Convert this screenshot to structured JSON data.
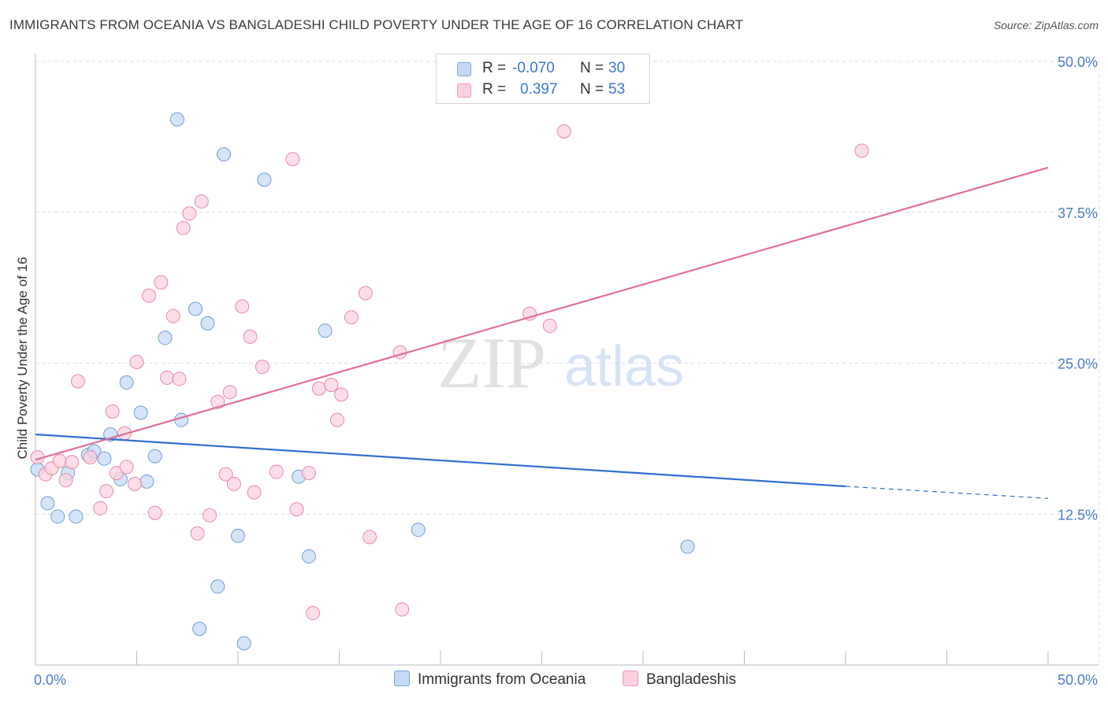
{
  "header": {
    "title": "IMMIGRANTS FROM OCEANIA VS BANGLADESHI CHILD POVERTY UNDER THE AGE OF 16 CORRELATION CHART",
    "source": "Source: ZipAtlas.com"
  },
  "watermark": {
    "zip": "ZIP",
    "atlas": "atlas"
  },
  "legend": {
    "rows": [
      {
        "r_label": "R =",
        "r_value": "-0.070",
        "n_label": "N =",
        "n_value": "30",
        "color": "#a9c7ef"
      },
      {
        "r_label": "R =",
        "r_value": "0.397",
        "n_label": "N =",
        "n_value": "53",
        "color": "#f6b5c9"
      }
    ]
  },
  "bottom_legend": {
    "series1": "Immigrants from Oceania",
    "series2": "Bangladeshis"
  },
  "chart_data": {
    "type": "scatter",
    "ylabel": "Child Poverty Under the Age of 16",
    "xlabel": "",
    "xlim": [
      0,
      50
    ],
    "ylim": [
      0,
      50
    ],
    "x_tick_labels": [
      "0.0%",
      "50.0%"
    ],
    "y_tick_labels": [
      "12.5%",
      "25.0%",
      "37.5%",
      "50.0%"
    ],
    "y_ticks": [
      12.5,
      25.0,
      37.5,
      50.0
    ],
    "grid": true,
    "legend_position": "top-center",
    "series": [
      {
        "name": "Immigrants from Oceania",
        "color": "#a9c7ef",
        "stroke": "#6f9fd8",
        "line_color": "#2f6fcf",
        "trend": {
          "x": [
            0,
            40
          ],
          "y": [
            19.1,
            14.8
          ],
          "dashed_to": [
            50,
            13.8
          ]
        },
        "points": [
          [
            0.1,
            16.2
          ],
          [
            0.6,
            13.4
          ],
          [
            1.1,
            12.3
          ],
          [
            1.6,
            15.9
          ],
          [
            2.0,
            12.3
          ],
          [
            2.6,
            17.4
          ],
          [
            2.9,
            17.7
          ],
          [
            3.4,
            17.1
          ],
          [
            3.7,
            19.1
          ],
          [
            4.2,
            15.4
          ],
          [
            4.5,
            23.4
          ],
          [
            5.2,
            20.9
          ],
          [
            5.5,
            15.2
          ],
          [
            5.9,
            17.3
          ],
          [
            6.4,
            27.1
          ],
          [
            7.0,
            45.2
          ],
          [
            7.2,
            20.3
          ],
          [
            7.9,
            29.5
          ],
          [
            8.1,
            3.0
          ],
          [
            8.5,
            28.3
          ],
          [
            9.0,
            6.5
          ],
          [
            9.3,
            42.3
          ],
          [
            10.0,
            10.7
          ],
          [
            10.3,
            1.8
          ],
          [
            11.3,
            40.2
          ],
          [
            13.0,
            15.6
          ],
          [
            13.5,
            9.0
          ],
          [
            14.3,
            27.7
          ],
          [
            18.9,
            11.2
          ],
          [
            32.2,
            9.8
          ]
        ]
      },
      {
        "name": "Bangladeshis",
        "color": "#f6b5c9",
        "stroke": "#e88aa6",
        "line_color": "#e26f97",
        "trend": {
          "x": [
            0,
            50
          ],
          "y": [
            17.0,
            41.2
          ]
        },
        "points": [
          [
            0.1,
            17.2
          ],
          [
            0.5,
            15.8
          ],
          [
            0.8,
            16.3
          ],
          [
            1.2,
            16.9
          ],
          [
            1.5,
            15.3
          ],
          [
            1.8,
            16.8
          ],
          [
            2.1,
            23.5
          ],
          [
            2.7,
            17.2
          ],
          [
            3.2,
            13.0
          ],
          [
            3.8,
            21.0
          ],
          [
            3.5,
            14.4
          ],
          [
            4.0,
            15.9
          ],
          [
            4.4,
            19.2
          ],
          [
            4.5,
            16.4
          ],
          [
            4.9,
            15.0
          ],
          [
            5.0,
            25.1
          ],
          [
            5.6,
            30.6
          ],
          [
            5.9,
            12.6
          ],
          [
            6.2,
            31.7
          ],
          [
            6.5,
            23.8
          ],
          [
            6.8,
            28.9
          ],
          [
            7.1,
            23.7
          ],
          [
            7.3,
            36.2
          ],
          [
            7.6,
            37.4
          ],
          [
            8.0,
            10.9
          ],
          [
            8.2,
            38.4
          ],
          [
            8.6,
            12.4
          ],
          [
            9.0,
            21.8
          ],
          [
            9.4,
            15.8
          ],
          [
            9.6,
            22.6
          ],
          [
            9.8,
            15.0
          ],
          [
            10.2,
            29.7
          ],
          [
            10.6,
            27.2
          ],
          [
            10.8,
            14.3
          ],
          [
            11.2,
            24.7
          ],
          [
            11.9,
            16.0
          ],
          [
            12.7,
            41.9
          ],
          [
            12.9,
            12.9
          ],
          [
            13.5,
            15.9
          ],
          [
            13.7,
            4.3
          ],
          [
            14.0,
            22.9
          ],
          [
            14.6,
            23.2
          ],
          [
            14.9,
            20.3
          ],
          [
            15.1,
            22.4
          ],
          [
            15.6,
            28.8
          ],
          [
            16.3,
            30.8
          ],
          [
            16.5,
            10.6
          ],
          [
            18.0,
            25.9
          ],
          [
            18.1,
            4.6
          ],
          [
            24.4,
            29.1
          ],
          [
            25.4,
            28.1
          ],
          [
            26.1,
            44.2
          ],
          [
            40.8,
            42.6
          ]
        ]
      }
    ]
  }
}
